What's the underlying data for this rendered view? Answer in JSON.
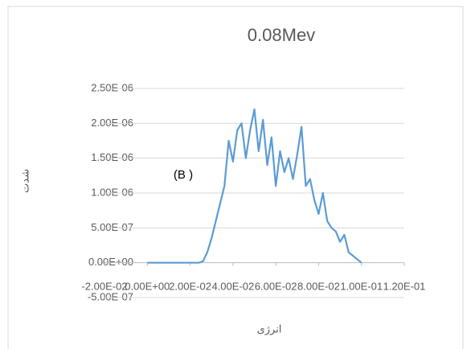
{
  "chart_data": {
    "type": "line",
    "title": "0.08Mev",
    "annotation": "(B )",
    "xlabel": "انرژی",
    "ylabel": "شدت",
    "x": [
      0,
      0.002,
      0.004,
      0.006,
      0.008,
      0.01,
      0.012,
      0.014,
      0.016,
      0.018,
      0.02,
      0.022,
      0.024,
      0.026,
      0.028,
      0.03,
      0.032,
      0.034,
      0.036,
      0.038,
      0.04,
      0.042,
      0.044,
      0.046,
      0.048,
      0.05,
      0.052,
      0.054,
      0.056,
      0.058,
      0.06,
      0.062,
      0.064,
      0.066,
      0.068,
      0.07,
      0.072,
      0.074,
      0.076,
      0.078,
      0.08,
      0.082,
      0.084,
      0.086,
      0.088,
      0.09,
      0.092,
      0.094,
      0.096,
      0.098,
      0.1
    ],
    "series": [
      {
        "name": "0.08Mev",
        "color": "#5b9bd5",
        "values": [
          0,
          0,
          0,
          0,
          0,
          0,
          0,
          0,
          0,
          0,
          0,
          0,
          0,
          2e-08,
          1.5e-07,
          3.5e-07,
          6e-07,
          8.5e-07,
          1.1e-06,
          1.75e-06,
          1.45e-06,
          1.9e-06,
          2e-06,
          1.5e-06,
          1.9e-06,
          2.2e-06,
          1.6e-06,
          2.05e-06,
          1.4e-06,
          1.8e-06,
          1.1e-06,
          1.6e-06,
          1.3e-06,
          1.5e-06,
          1.2e-06,
          1.55e-06,
          1.95e-06,
          1.1e-06,
          1.2e-06,
          9e-07,
          7e-07,
          1e-06,
          6e-07,
          5e-07,
          4.5e-07,
          3e-07,
          4e-07,
          1.5e-07,
          1e-07,
          5e-08,
          0
        ]
      }
    ],
    "xlim": [
      -0.02,
      0.12
    ],
    "xticks": [
      {
        "value": -0.02,
        "label": "-2.00E-02"
      },
      {
        "value": 0,
        "label": "0.00E+00"
      },
      {
        "value": 0.02,
        "label": "2.00E-02"
      },
      {
        "value": 0.04,
        "label": "4.00E-02"
      },
      {
        "value": 0.06,
        "label": "6.00E-02"
      },
      {
        "value": 0.08,
        "label": "8.00E-02"
      },
      {
        "value": 0.1,
        "label": "1.00E-01"
      },
      {
        "value": 0.12,
        "label": "1.20E-01"
      }
    ],
    "ylim": [
      -5e-07,
      2.5e-06
    ],
    "yticks": [
      {
        "value": -5e-07,
        "label": "-5.00E-07"
      },
      {
        "value": 0,
        "label": "0.00E+00"
      },
      {
        "value": 5e-07,
        "label": "5.00E-07"
      },
      {
        "value": 1e-06,
        "label": "1.00E-06"
      },
      {
        "value": 1.5e-06,
        "label": "1.50E-06"
      },
      {
        "value": 2e-06,
        "label": "2.00E-06"
      },
      {
        "value": 2.5e-06,
        "label": "2.50E-06"
      }
    ],
    "grid": true
  }
}
